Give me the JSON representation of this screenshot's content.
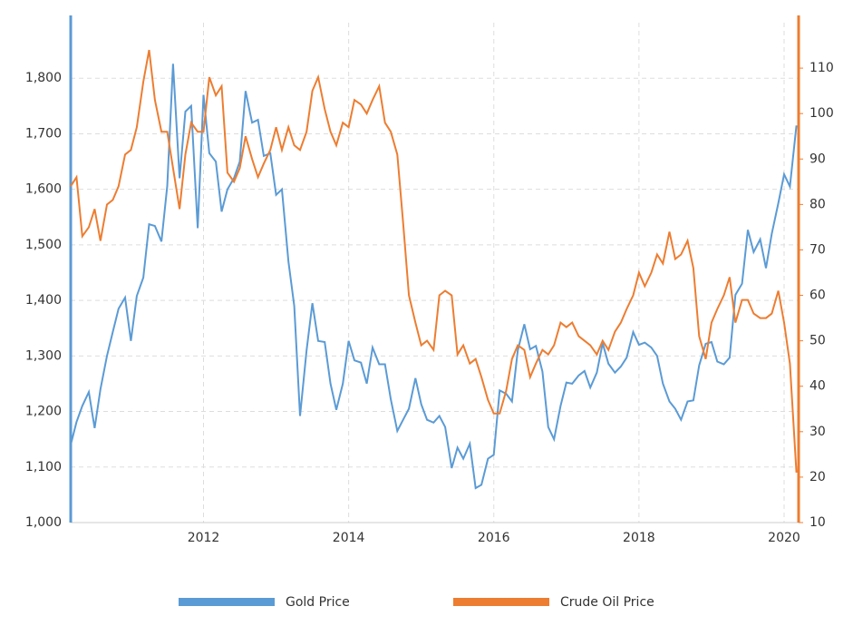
{
  "chart_data": {
    "type": "line",
    "x": [
      2010.17,
      2010.25,
      2010.33,
      2010.42,
      2010.5,
      2010.58,
      2010.67,
      2010.75,
      2010.83,
      2010.92,
      2011.0,
      2011.08,
      2011.17,
      2011.25,
      2011.33,
      2011.42,
      2011.5,
      2011.58,
      2011.67,
      2011.75,
      2011.83,
      2011.92,
      2012.0,
      2012.08,
      2012.17,
      2012.25,
      2012.33,
      2012.42,
      2012.5,
      2012.58,
      2012.67,
      2012.75,
      2012.83,
      2012.92,
      2013.0,
      2013.08,
      2013.17,
      2013.25,
      2013.33,
      2013.42,
      2013.5,
      2013.58,
      2013.67,
      2013.75,
      2013.83,
      2013.92,
      2014.0,
      2014.08,
      2014.17,
      2014.25,
      2014.33,
      2014.42,
      2014.5,
      2014.58,
      2014.67,
      2014.75,
      2014.83,
      2014.92,
      2015.0,
      2015.08,
      2015.17,
      2015.25,
      2015.33,
      2015.42,
      2015.5,
      2015.58,
      2015.67,
      2015.75,
      2015.83,
      2015.92,
      2016.0,
      2016.08,
      2016.17,
      2016.25,
      2016.33,
      2016.42,
      2016.5,
      2016.58,
      2016.67,
      2016.75,
      2016.83,
      2016.92,
      2017.0,
      2017.08,
      2017.17,
      2017.25,
      2017.33,
      2017.42,
      2017.5,
      2017.58,
      2017.67,
      2017.75,
      2017.83,
      2017.92,
      2018.0,
      2018.08,
      2018.17,
      2018.25,
      2018.33,
      2018.42,
      2018.5,
      2018.58,
      2018.67,
      2018.75,
      2018.83,
      2018.92,
      2019.0,
      2019.08,
      2019.17,
      2019.25,
      2019.33,
      2019.42,
      2019.5,
      2019.58,
      2019.67,
      2019.75,
      2019.83,
      2019.92,
      2020.0,
      2020.08,
      2020.17
    ],
    "series": [
      {
        "name": "Gold Price",
        "color": "#5b9bd5",
        "values": [
          1140,
          1181,
          1210,
          1235,
          1170,
          1240,
          1300,
          1343,
          1385,
          1405,
          1327,
          1408,
          1441,
          1537,
          1534,
          1506,
          1606,
          1826,
          1620,
          1740,
          1750,
          1530,
          1770,
          1665,
          1650,
          1560,
          1600,
          1620,
          1650,
          1777,
          1720,
          1725,
          1660,
          1665,
          1590,
          1600,
          1470,
          1390,
          1192,
          1310,
          1395,
          1327,
          1325,
          1250,
          1203,
          1250,
          1327,
          1292,
          1288,
          1250,
          1315,
          1285,
          1285,
          1222,
          1165,
          1185,
          1205,
          1260,
          1213,
          1185,
          1180,
          1192,
          1172,
          1098,
          1135,
          1115,
          1142,
          1062,
          1068,
          1115,
          1122,
          1238,
          1232,
          1218,
          1310,
          1357,
          1312,
          1318,
          1272,
          1172,
          1150,
          1210,
          1252,
          1250,
          1265,
          1273,
          1243,
          1270,
          1323,
          1286,
          1270,
          1281,
          1297,
          1343,
          1320,
          1324,
          1315,
          1300,
          1250,
          1218,
          1205,
          1185,
          1218,
          1220,
          1283,
          1322,
          1325,
          1290,
          1285,
          1297,
          1410,
          1430,
          1527,
          1487,
          1510,
          1458,
          1520,
          1575,
          1627,
          1605,
          1715
        ]
      },
      {
        "name": "Crude Oil Price",
        "color": "#ed7d31",
        "axis": "y2",
        "values": [
          84,
          86,
          73,
          75,
          79,
          72,
          80,
          81,
          84,
          91,
          92,
          97,
          107,
          114,
          103,
          96,
          96,
          88,
          79,
          91,
          98,
          96,
          96,
          108,
          104,
          106,
          87,
          85,
          88,
          95,
          90,
          86,
          89,
          92,
          97,
          92,
          97,
          93,
          92,
          96,
          105,
          108,
          101,
          96,
          93,
          98,
          97,
          103,
          102,
          100,
          103,
          106,
          98,
          96,
          91,
          76,
          60,
          54,
          49,
          50,
          48,
          60,
          61,
          60,
          47,
          49,
          45,
          46,
          42,
          37,
          34,
          34,
          39,
          46,
          49,
          48,
          42,
          45,
          48,
          47,
          49,
          54,
          53,
          54,
          51,
          50,
          49,
          47,
          50,
          48,
          52,
          54,
          57,
          60,
          65,
          62,
          65,
          69,
          67,
          74,
          68,
          69,
          72,
          66,
          51,
          46,
          54,
          57,
          60,
          64,
          54,
          59,
          59,
          56,
          55,
          55,
          56,
          61,
          54,
          45,
          21
        ]
      }
    ],
    "xlim": [
      2010.17,
      2020.2
    ],
    "xticks": [
      2012,
      2014,
      2016,
      2018,
      2020
    ],
    "ylim": [
      1000,
      1900
    ],
    "yticks": [
      {
        "value": 1000,
        "label": "1,000"
      },
      {
        "value": 1100,
        "label": "1,100"
      },
      {
        "value": 1200,
        "label": "1,200"
      },
      {
        "value": 1300,
        "label": "1,300"
      },
      {
        "value": 1400,
        "label": "1,400"
      },
      {
        "value": 1500,
        "label": "1,500"
      },
      {
        "value": 1600,
        "label": "1,600"
      },
      {
        "value": 1700,
        "label": "1,700"
      },
      {
        "value": 1800,
        "label": "1,800"
      }
    ],
    "y2lim": [
      10,
      120
    ],
    "y2ticks": [
      10,
      20,
      30,
      40,
      50,
      60,
      70,
      80,
      90,
      100,
      110
    ],
    "grid": true
  }
}
